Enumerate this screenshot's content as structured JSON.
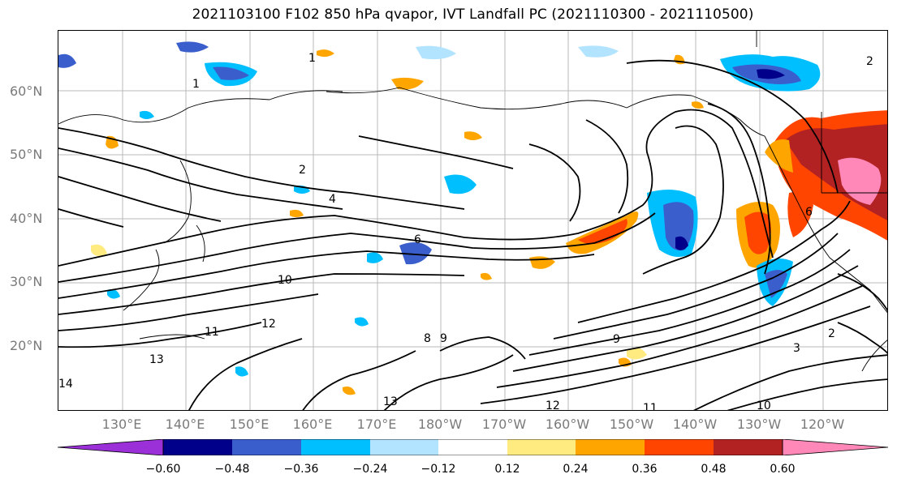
{
  "title": "2021103100 F102 850 hPa qvapor, IVT Landfall PC (2021110300 - 2021110500)",
  "lat_labels": [
    "60°N",
    "50°N",
    "40°N",
    "30°N",
    "20°N"
  ],
  "lon_labels": [
    "130°E",
    "140°E",
    "150°E",
    "160°E",
    "170°E",
    "180°W",
    "170°W",
    "160°W",
    "150°W",
    "140°W",
    "130°W",
    "120°W"
  ],
  "colorbar": {
    "colors": [
      "#9b30d9",
      "#00008b",
      "#3a5fcd",
      "#00bfff",
      "#b2e4ff",
      "#ffffff",
      "#ffeb80",
      "#ffa500",
      "#ff4500",
      "#b22222",
      "#ff88b8"
    ],
    "ticks": [
      "−0.60",
      "−0.48",
      "−0.36",
      "−0.24",
      "−0.12",
      "0.12",
      "0.24",
      "0.36",
      "0.48",
      "0.60"
    ]
  },
  "contour_labels": [
    "1",
    "1",
    "2",
    "2",
    "4",
    "6",
    "8",
    "9",
    "10",
    "11",
    "12",
    "13",
    "14",
    "12",
    "11",
    "10",
    "9",
    "6",
    "2",
    "3",
    "13"
  ]
}
